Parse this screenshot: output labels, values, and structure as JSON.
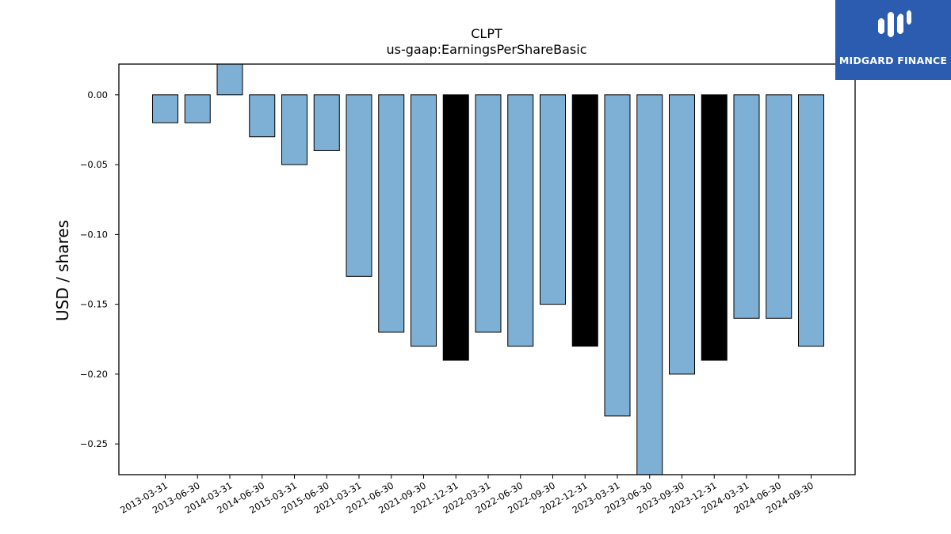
{
  "chart_data": {
    "type": "bar",
    "title": "CLPT",
    "subtitle": "us-gaap:EarningsPerShareBasic",
    "ylabel": "USD / shares",
    "xlabel": "",
    "ylim": [
      -0.272,
      0.022
    ],
    "yticks": [
      0.0,
      -0.05,
      -0.1,
      -0.15,
      -0.2,
      -0.25
    ],
    "ytick_labels": [
      "0.00",
      "−0.05",
      "−0.10",
      "−0.15",
      "−0.20",
      "−0.25"
    ],
    "categories": [
      "2013-03-31",
      "2013-06-30",
      "2014-03-31",
      "2014-06-30",
      "2015-03-31",
      "2015-06-30",
      "2021-03-31",
      "2021-06-30",
      "2021-09-30",
      "2021-12-31",
      "2022-03-31",
      "2022-06-30",
      "2022-09-30",
      "2022-12-31",
      "2023-03-31",
      "2023-06-30",
      "2023-09-30",
      "2023-12-31",
      "2024-03-31",
      "2024-06-30",
      "2024-09-30"
    ],
    "values": [
      -0.02,
      -0.02,
      0.03,
      -0.03,
      -0.05,
      -0.04,
      -0.13,
      -0.17,
      -0.18,
      -0.19,
      -0.17,
      -0.18,
      -0.15,
      -0.18,
      -0.23,
      -0.28,
      -0.2,
      -0.19,
      -0.16,
      -0.16,
      -0.18
    ],
    "highlight": [
      false,
      false,
      false,
      false,
      false,
      false,
      false,
      false,
      false,
      true,
      false,
      false,
      false,
      true,
      false,
      false,
      false,
      true,
      false,
      false,
      false
    ],
    "colors": {
      "bar": "#7eb0d5",
      "highlight": "#000000",
      "edge": "#000000",
      "background": "#ffffff"
    },
    "grid": false,
    "legend": "none"
  },
  "logo": {
    "text": "MIDGARD FINANCE",
    "background": "#2b5cb0",
    "icon": "midgard-logo-icon"
  }
}
